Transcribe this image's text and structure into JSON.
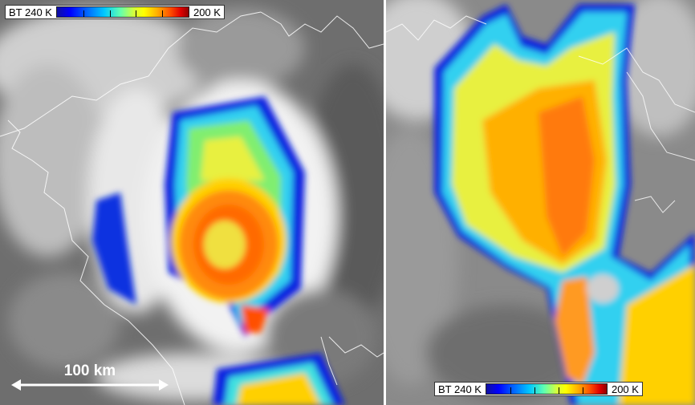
{
  "colorbar": {
    "min_label": "BT 240 K",
    "max_label": "200 K"
  },
  "scale_bar": {
    "label": "100 km"
  },
  "colors": {
    "cloud_cold": "#e02000",
    "cloud_warm": "#0000e0",
    "background": "#6e6e6e"
  }
}
